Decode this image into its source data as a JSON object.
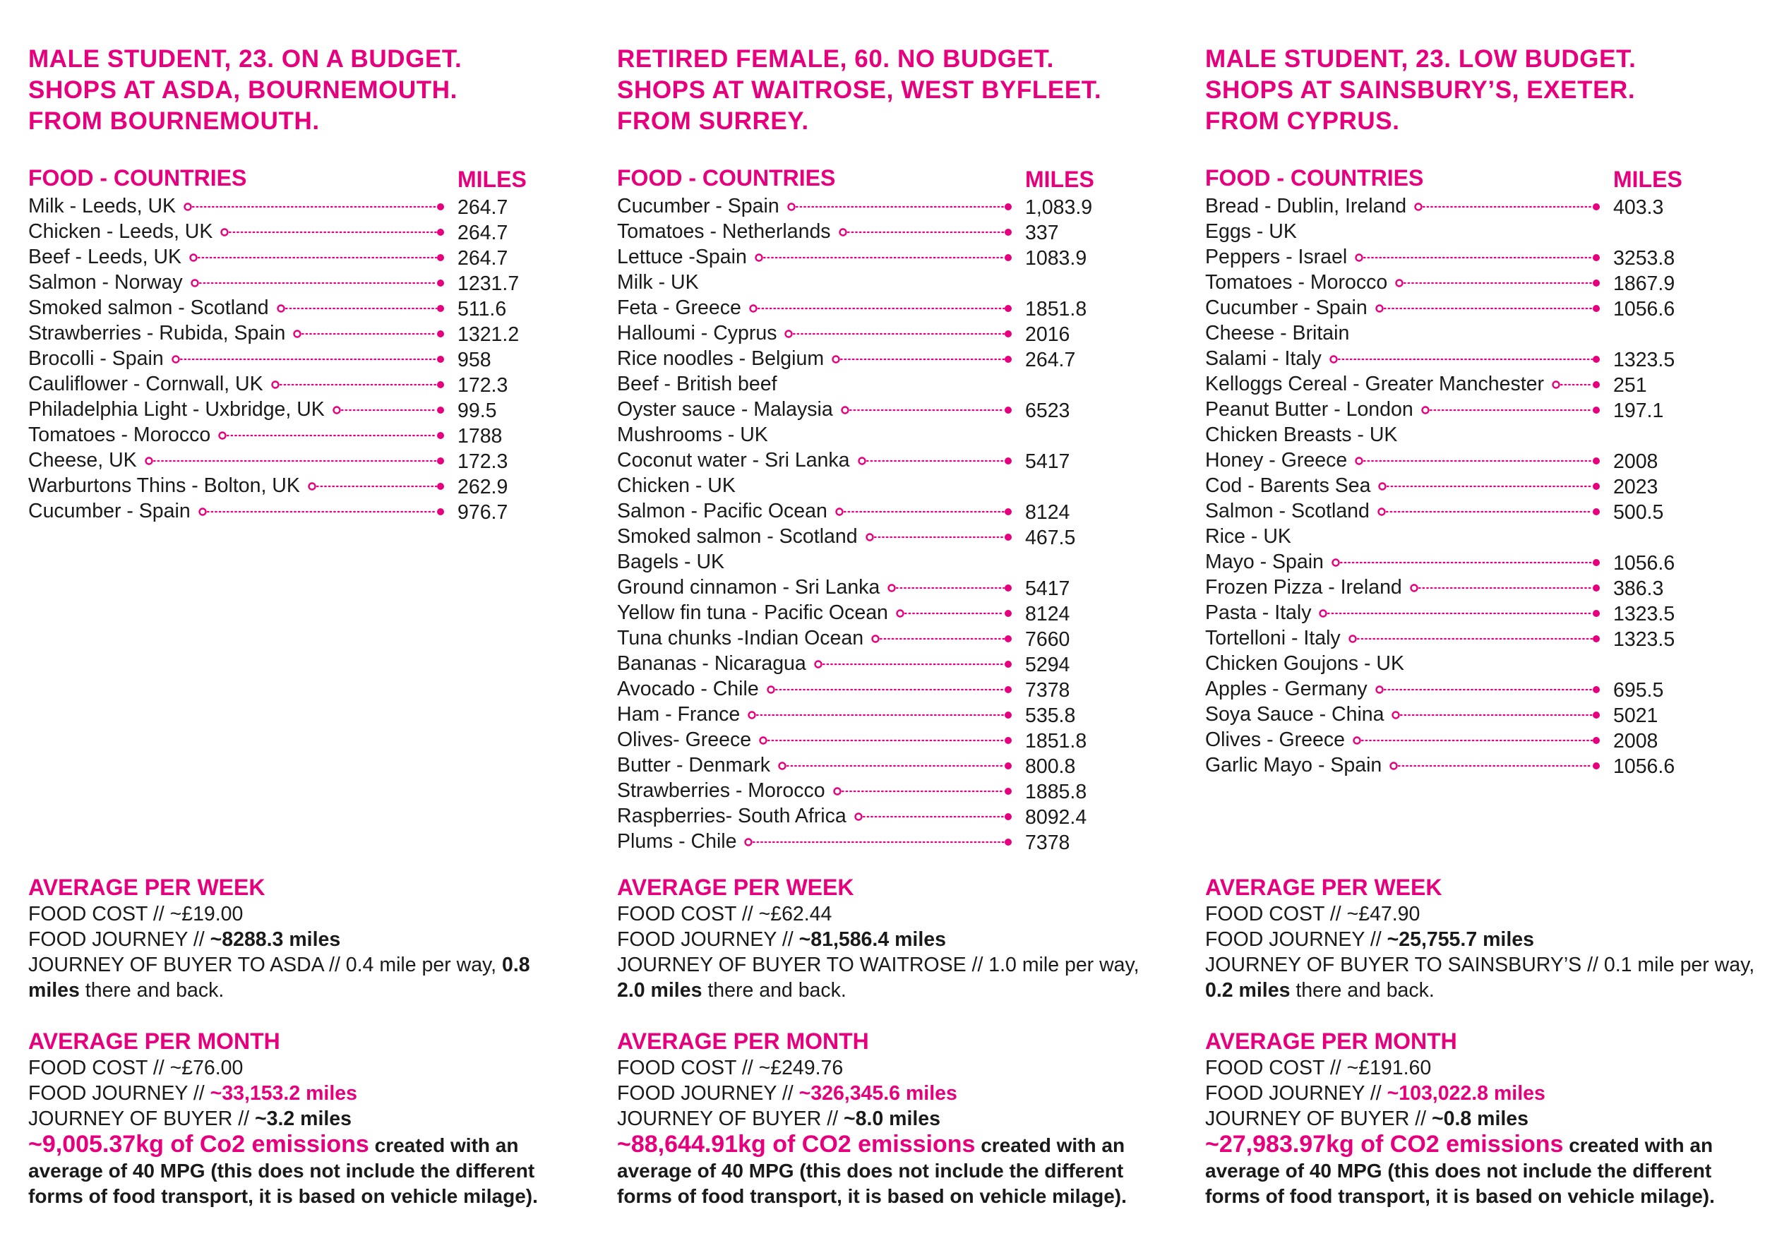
{
  "accent_color": "#e6007e",
  "columns": [
    {
      "profile": [
        "MALE STUDENT, 23. ON A BUDGET.",
        "SHOPS AT ASDA, BOURNEMOUTH.",
        "FROM BOURNEMOUTH."
      ],
      "food_heading": "FOOD - COUNTRIES",
      "miles_heading": "MILES",
      "items": [
        {
          "label": "Milk - Leeds, UK",
          "miles": "264.7"
        },
        {
          "label": "Chicken - Leeds, UK",
          "miles": "264.7"
        },
        {
          "label": "Beef - Leeds, UK",
          "miles": "264.7"
        },
        {
          "label": "Salmon - Norway",
          "miles": "1231.7"
        },
        {
          "label": "Smoked salmon - Scotland",
          "miles": "511.6"
        },
        {
          "label": "Strawberries - Rubida, Spain",
          "miles": "1321.2"
        },
        {
          "label": "Brocolli - Spain",
          "miles": "958"
        },
        {
          "label": "Cauliflower - Cornwall, UK",
          "miles": "172.3"
        },
        {
          "label": "Philadelphia Light - Uxbridge, UK",
          "miles": "99.5"
        },
        {
          "label": "Tomatoes - Morocco",
          "miles": "1788"
        },
        {
          "label": "Cheese, UK",
          "miles": "172.3"
        },
        {
          "label": "Warburtons Thins - Bolton, UK",
          "miles": "262.9"
        },
        {
          "label": "Cucumber - Spain",
          "miles": "976.7"
        }
      ],
      "week": {
        "title": "AVERAGE PER WEEK",
        "cost": "FOOD COST // ~£19.00",
        "journey_prefix": "FOOD JOURNEY // ",
        "journey_value": "~8288.3 miles",
        "buyer_a": "JOURNEY OF BUYER TO ASDA // 0.4 mile per way, ",
        "buyer_b": "0.8",
        "buyer_c": "miles",
        "buyer_d": " there and back."
      },
      "month": {
        "title": "AVERAGE PER MONTH",
        "cost": "FOOD COST // ~£76.00",
        "journey_prefix": "FOOD JOURNEY // ",
        "journey_value": "~33,153.2 miles",
        "buyer_prefix": "JOURNEY OF BUYER // ",
        "buyer_value": "~3.2 miles",
        "co2_value": "~9,005.37kg of Co2 emissions",
        "co2_text": " created with an average of 40 MPG (this does not include the different forms of food transport, it is based on vehicle milage)."
      }
    },
    {
      "profile": [
        "RETIRED FEMALE, 60. NO BUDGET.",
        "SHOPS AT WAITROSE, WEST BYFLEET.",
        "FROM SURREY."
      ],
      "food_heading": "FOOD - COUNTRIES",
      "miles_heading": "MILES",
      "items": [
        {
          "label": "Cucumber - Spain",
          "miles": "1,083.9"
        },
        {
          "label": "Tomatoes - Netherlands",
          "miles": "337"
        },
        {
          "label": "Lettuce -Spain",
          "miles": "1083.9"
        },
        {
          "label": "Milk - UK",
          "miles": ""
        },
        {
          "label": "Feta - Greece",
          "miles": "1851.8"
        },
        {
          "label": "Halloumi - Cyprus",
          "miles": "2016"
        },
        {
          "label": "Rice noodles - Belgium",
          "miles": "264.7"
        },
        {
          "label": "Beef - British beef",
          "miles": ""
        },
        {
          "label": "Oyster sauce - Malaysia",
          "miles": "6523"
        },
        {
          "label": "Mushrooms - UK",
          "miles": ""
        },
        {
          "label": "Coconut water - Sri Lanka",
          "miles": "5417"
        },
        {
          "label": "Chicken - UK",
          "miles": ""
        },
        {
          "label": "Salmon - Pacific Ocean",
          "miles": "8124"
        },
        {
          "label": "Smoked salmon - Scotland",
          "miles": "467.5"
        },
        {
          "label": "Bagels - UK",
          "miles": ""
        },
        {
          "label": "Ground cinnamon - Sri Lanka",
          "miles": "5417"
        },
        {
          "label": "Yellow fin tuna - Pacific Ocean",
          "miles": "8124"
        },
        {
          "label": "Tuna chunks -Indian Ocean",
          "miles": "7660"
        },
        {
          "label": "Bananas - Nicaragua",
          "miles": "5294"
        },
        {
          "label": "Avocado - Chile",
          "miles": "7378"
        },
        {
          "label": "Ham - France",
          "miles": "535.8"
        },
        {
          "label": "Olives- Greece",
          "miles": "1851.8"
        },
        {
          "label": "Butter - Denmark",
          "miles": "800.8"
        },
        {
          "label": "Strawberries - Morocco",
          "miles": "1885.8"
        },
        {
          "label": "Raspberries- South Africa",
          "miles": "8092.4"
        },
        {
          "label": "Plums - Chile",
          "miles": "7378"
        }
      ],
      "week": {
        "title": "AVERAGE PER WEEK",
        "cost": "FOOD COST // ~£62.44",
        "journey_prefix": "FOOD JOURNEY // ",
        "journey_value": "~81,586.4 miles",
        "buyer_a": "JOURNEY OF BUYER TO WAITROSE // 1.0 mile per way,",
        "buyer_b": "",
        "buyer_c": "2.0 miles",
        "buyer_d": " there and back."
      },
      "month": {
        "title": "AVERAGE PER MONTH",
        "cost": "FOOD COST // ~£249.76",
        "journey_prefix": "FOOD JOURNEY // ",
        "journey_value": "~326,345.6 miles",
        "buyer_prefix": "JOURNEY OF BUYER // ",
        "buyer_value": "~8.0 miles",
        "co2_value": "~88,644.91kg of CO2 emissions",
        "co2_text": " created with an average of 40 MPG (this does not include the different forms of food transport, it is based on vehicle milage)."
      }
    },
    {
      "profile": [
        "MALE STUDENT, 23. LOW BUDGET.",
        "SHOPS AT SAINSBURY’S, EXETER.",
        "FROM CYPRUS."
      ],
      "food_heading": "FOOD - COUNTRIES",
      "miles_heading": "MILES",
      "items": [
        {
          "label": "Bread - Dublin, Ireland",
          "miles": "403.3"
        },
        {
          "label": "Eggs - UK",
          "miles": ""
        },
        {
          "label": "Peppers - Israel",
          "miles": "3253.8"
        },
        {
          "label": "Tomatoes - Morocco",
          "miles": "1867.9"
        },
        {
          "label": "Cucumber - Spain",
          "miles": "1056.6"
        },
        {
          "label": "Cheese - Britain",
          "miles": ""
        },
        {
          "label": "Salami - Italy",
          "miles": "1323.5"
        },
        {
          "label": "Kelloggs Cereal - Greater Manchester",
          "miles": "251"
        },
        {
          "label": "Peanut Butter - London",
          "miles": "197.1"
        },
        {
          "label": "Chicken Breasts - UK",
          "miles": ""
        },
        {
          "label": "Honey - Greece",
          "miles": "2008"
        },
        {
          "label": "Cod - Barents Sea",
          "miles": "2023"
        },
        {
          "label": "Salmon - Scotland",
          "miles": "500.5"
        },
        {
          "label": "Rice - UK",
          "miles": ""
        },
        {
          "label": "Mayo - Spain",
          "miles": "1056.6"
        },
        {
          "label": "Frozen Pizza - Ireland",
          "miles": "386.3"
        },
        {
          "label": "Pasta - Italy",
          "miles": "1323.5"
        },
        {
          "label": "Tortelloni - Italy",
          "miles": "1323.5"
        },
        {
          "label": "Chicken Goujons - UK",
          "miles": ""
        },
        {
          "label": "Apples - Germany",
          "miles": "695.5"
        },
        {
          "label": "Soya Sauce - China",
          "miles": "5021"
        },
        {
          "label": "Olives - Greece",
          "miles": "2008"
        },
        {
          "label": "Garlic Mayo - Spain",
          "miles": "1056.6"
        }
      ],
      "week": {
        "title": "AVERAGE PER WEEK",
        "cost": "FOOD COST // ~£47.90",
        "journey_prefix": "FOOD JOURNEY // ",
        "journey_value": "~25,755.7 miles",
        "buyer_a": "JOURNEY OF BUYER TO SAINSBURY’S // 0.1 mile per way, ",
        "buyer_b": "",
        "buyer_c": "0.2 miles",
        "buyer_d": " there and back."
      },
      "month": {
        "title": "AVERAGE PER MONTH",
        "cost": "FOOD COST // ~£191.60",
        "journey_prefix": "FOOD JOURNEY // ",
        "journey_value": "~103,022.8 miles",
        "buyer_prefix": "JOURNEY OF BUYER // ",
        "buyer_value": "~0.8 miles",
        "co2_value": "~27,983.97kg of CO2 emissions",
        "co2_text": " created with an average of 40 MPG (this does not include the different forms of food transport, it is based on vehicle milage)."
      }
    }
  ]
}
